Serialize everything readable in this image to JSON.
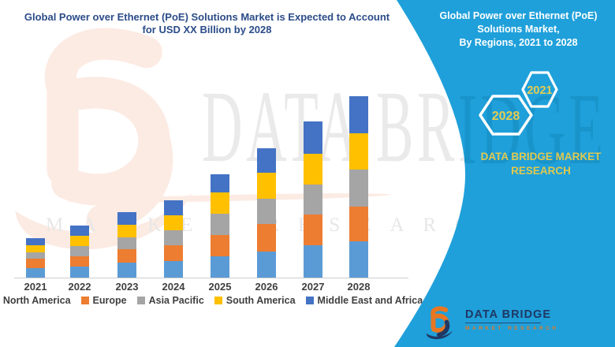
{
  "chart_title": {
    "line1": "Global Power over Ethernet (PoE) Solutions Market is Expected to Account",
    "line2": "for USD XX Billion by 2028"
  },
  "chart_data": {
    "type": "bar",
    "stacked": true,
    "title": "Global Power over Ethernet (PoE) Solutions Market is Expected to Account for USD XX Billion by 2028",
    "categories": [
      "2021",
      "2022",
      "2023",
      "2024",
      "2025",
      "2026",
      "2027",
      "2028"
    ],
    "series": [
      {
        "name": "North America",
        "color": "#5B9BD5",
        "values": [
          12,
          14,
          19,
          21,
          27,
          33,
          41,
          46
        ]
      },
      {
        "name": "Europe",
        "color": "#ED7D31",
        "values": [
          12,
          13,
          17,
          20,
          27,
          35,
          39,
          44
        ]
      },
      {
        "name": "Asia Pacific",
        "color": "#A5A5A5",
        "values": [
          8,
          13,
          15,
          19,
          27,
          32,
          38,
          47
        ]
      },
      {
        "name": "South America",
        "color": "#FFC000",
        "values": [
          9,
          13,
          16,
          19,
          27,
          33,
          39,
          46
        ]
      },
      {
        "name": "Middle East and Africa",
        "color": "#4472C4",
        "values": [
          9,
          13,
          16,
          19,
          23,
          31,
          41,
          47
        ]
      }
    ],
    "totals": [
      50,
      66,
      83,
      98,
      131,
      164,
      198,
      230
    ],
    "value_axis": {
      "labels_visible": false,
      "units": "relative height (actual values shown as USD XX Billion)"
    },
    "gridlines": false,
    "legend_position": "bottom"
  },
  "panel": {
    "bg_color": "#1FA0DA",
    "title_lines": [
      "Global Power over Ethernet (PoE)",
      "Solutions Market,",
      "By Regions, 2021 to 2028"
    ],
    "hexagons": [
      {
        "label": "2028"
      },
      {
        "label": "2021"
      }
    ],
    "brand_caption": "DATA BRIDGE MARKET RESEARCH",
    "accent_text_color": "#DFC94E"
  },
  "logo": {
    "primary": "DATA BRIDGE",
    "secondary": "MARKET RESEARCH"
  },
  "watermark": {
    "primary": "DATA BRIDGE",
    "secondary": "MARKET RESEARCH"
  }
}
